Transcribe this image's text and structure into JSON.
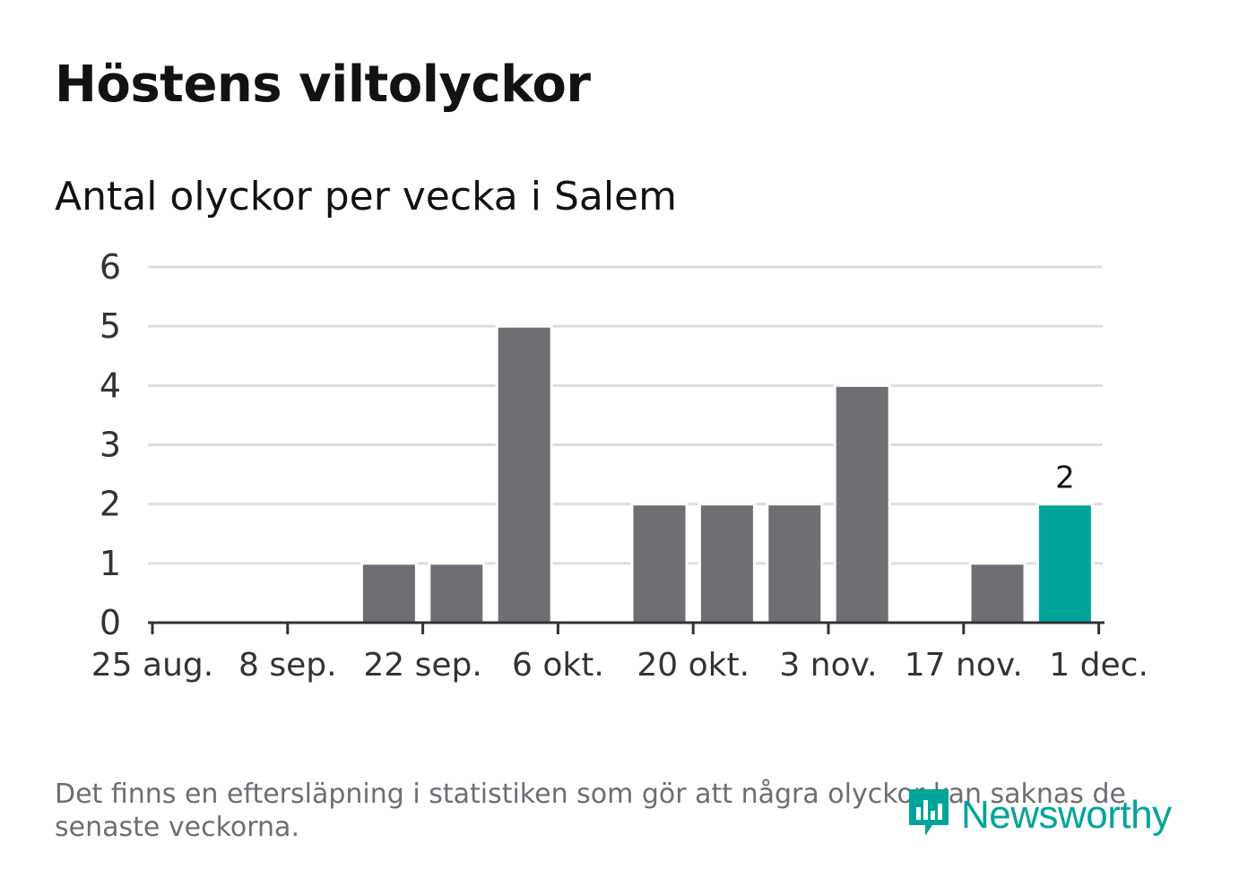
{
  "header": {
    "title": "Höstens viltolyckor",
    "subtitle": "Antal olyckor per vecka i Salem"
  },
  "chart_data": {
    "type": "bar",
    "title": "Höstens viltolyckor",
    "subtitle": "Antal olyckor per vecka i Salem",
    "xlabel": "",
    "ylabel": "",
    "categories": [
      "25 aug.",
      "1 sep.",
      "8 sep.",
      "15 sep.",
      "22 sep.",
      "29 sep.",
      "6 okt.",
      "13 okt.",
      "20 okt.",
      "27 okt.",
      "3 nov.",
      "10 nov.",
      "17 nov.",
      "24 nov."
    ],
    "values": [
      0,
      0,
      0,
      1,
      1,
      5,
      0,
      2,
      2,
      2,
      4,
      0,
      1,
      2
    ],
    "x_tick_labels": [
      "25 aug.",
      "8 sep.",
      "22 sep.",
      "6 okt.",
      "20 okt.",
      "3 nov.",
      "17 nov.",
      "1 dec."
    ],
    "y_ticks": [
      0,
      1,
      2,
      3,
      4,
      5,
      6
    ],
    "ylim": [
      0,
      6
    ],
    "grid": true,
    "highlight_index": 13,
    "highlight_label": "2",
    "colors": {
      "bar": "#6f6e73",
      "highlight": "#00a49a",
      "grid": "#dddddd",
      "axis": "#333333",
      "tick_text": "#333333"
    }
  },
  "footer": {
    "note": "Det finns en eftersläpning i statistiken som gör att några olyckor kan saknas de senaste veckorna.",
    "brand": "Newsworthy",
    "brand_icon": "newsworthy-logo-icon",
    "brand_color": "#00a49a"
  }
}
